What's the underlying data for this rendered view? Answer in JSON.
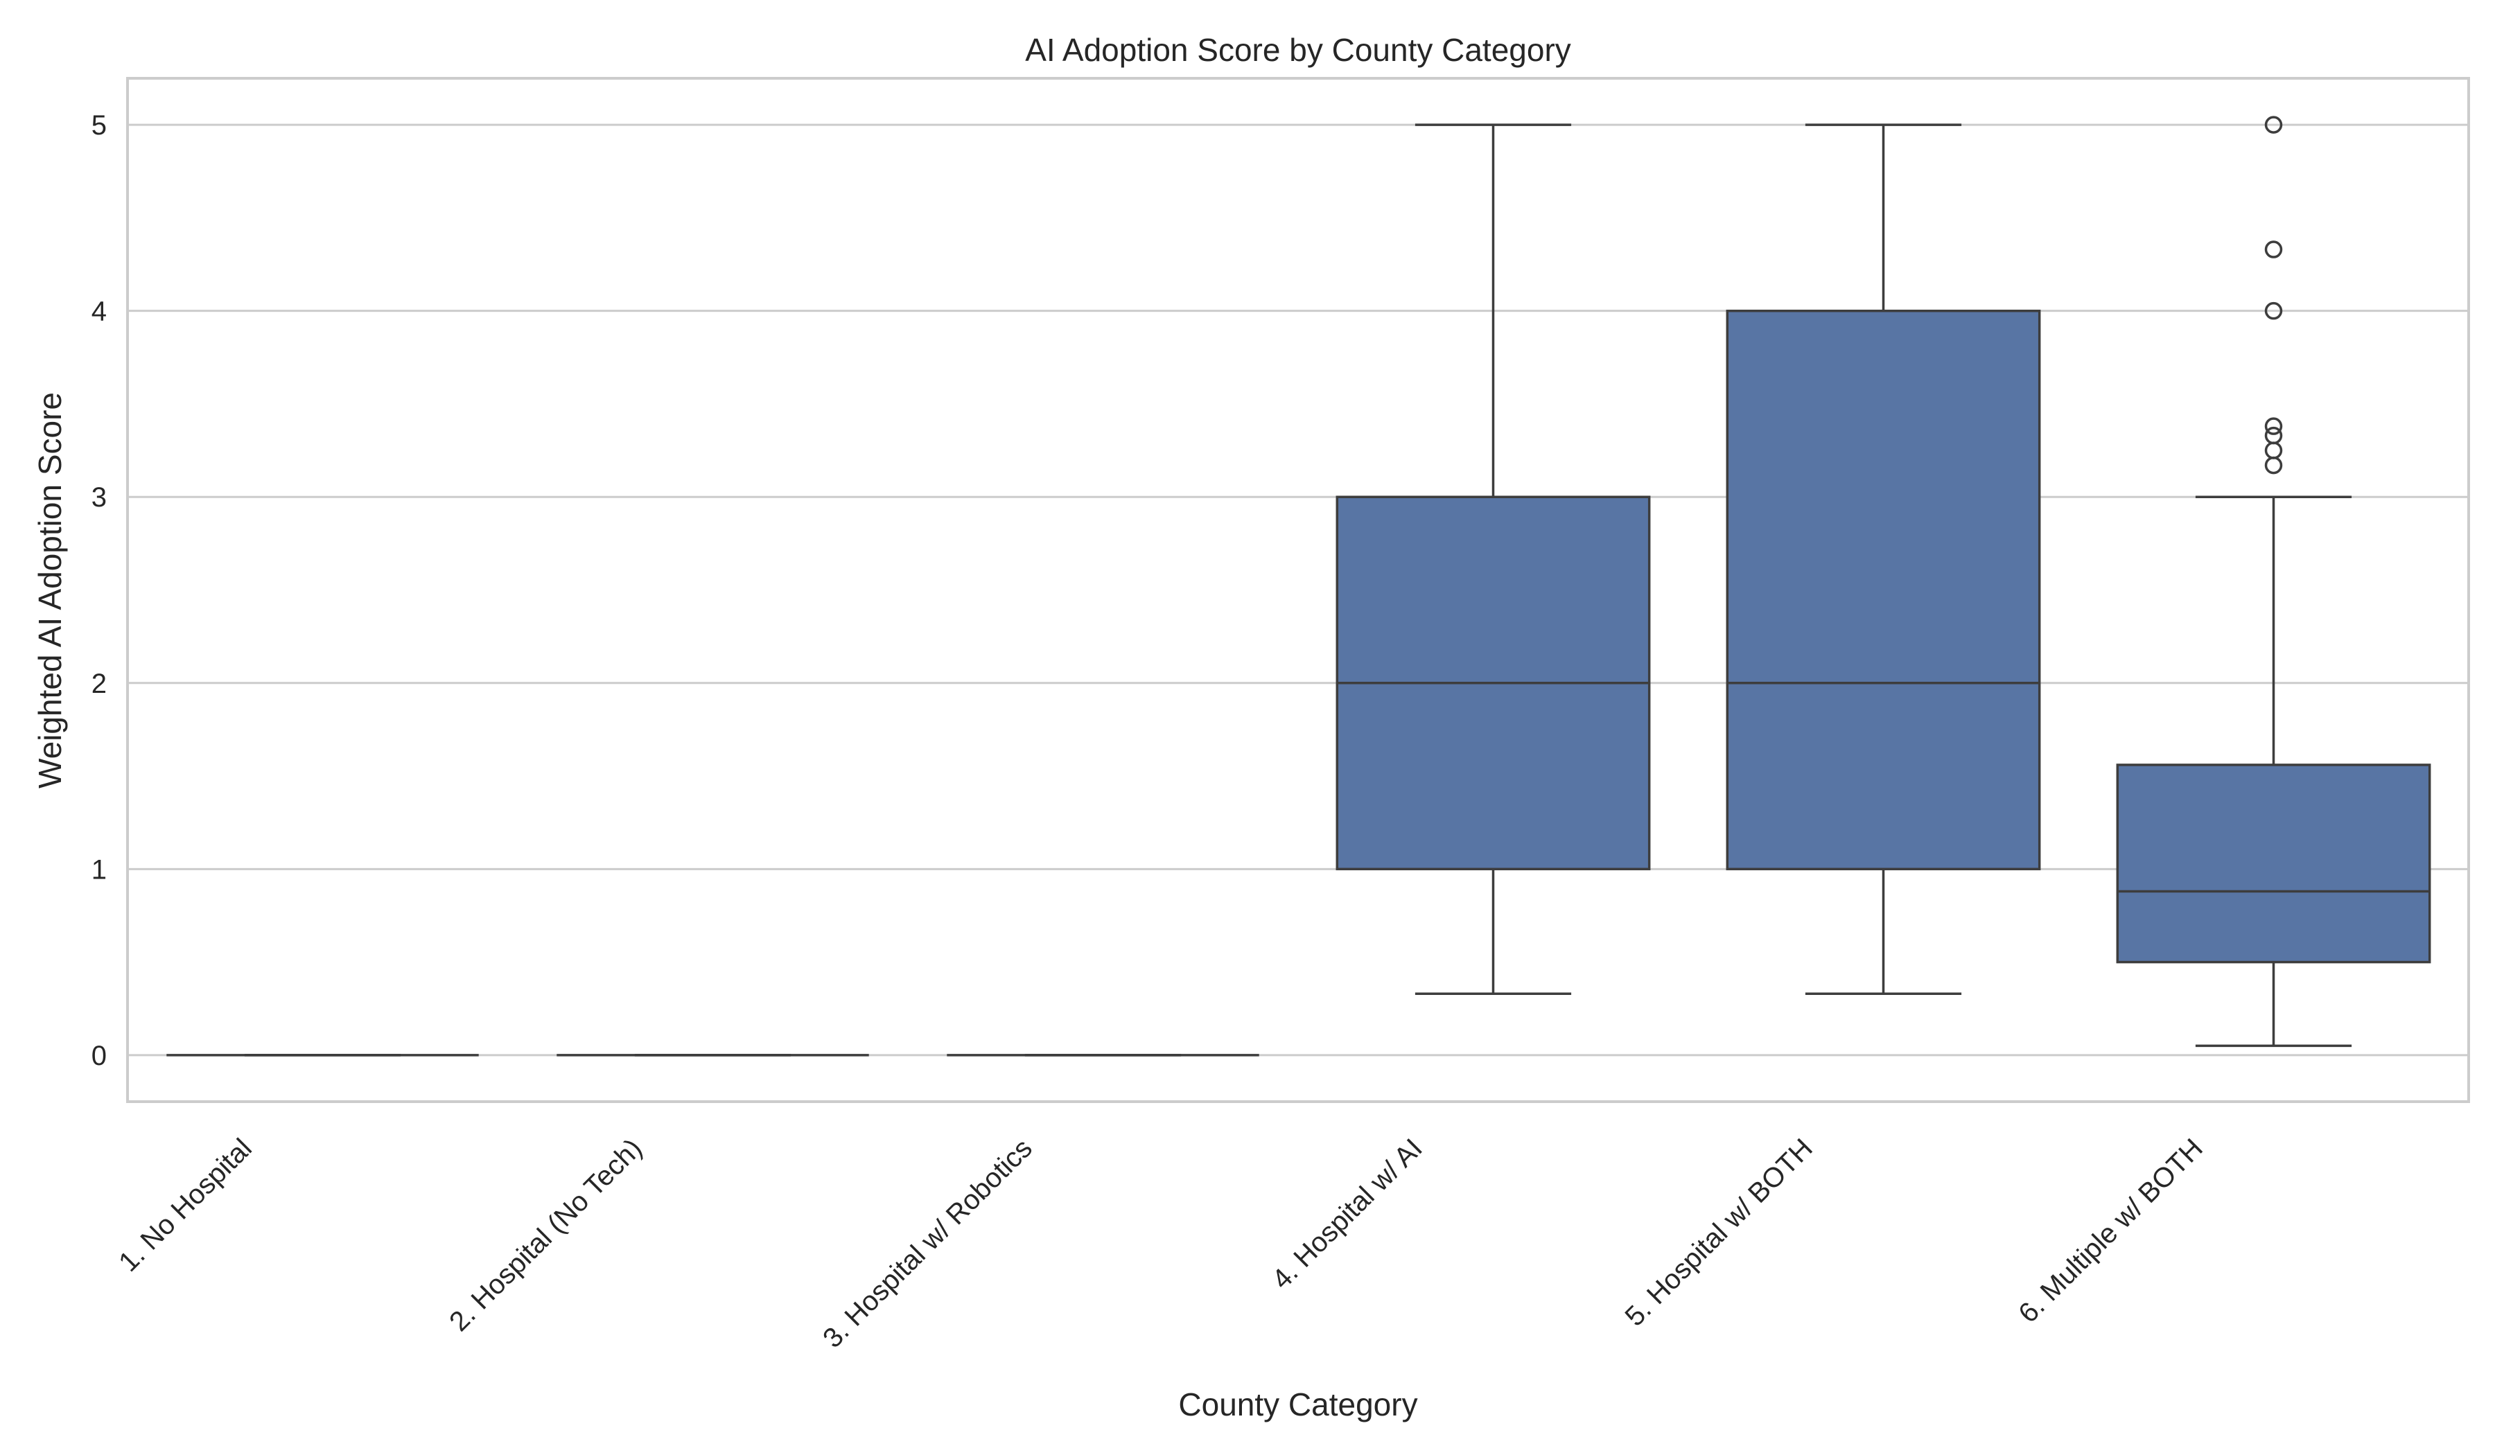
{
  "chart_data": {
    "type": "box",
    "title": "AI Adoption Score by County Category",
    "xlabel": "County Category",
    "ylabel": "Weighted AI Adoption Score",
    "ylim": [
      -0.25,
      5.25
    ],
    "yticks": [
      0,
      1,
      2,
      3,
      4,
      5
    ],
    "grid": true,
    "box_color": "#5875a4",
    "line_color": "#3d3d3d",
    "categories": [
      "1. No Hospital",
      "2. Hospital (No Tech)",
      "3. Hospital w/ Robotics",
      "4. Hospital w/ AI",
      "5. Hospital w/ BOTH",
      "6. Multiple w/ BOTH"
    ],
    "boxes": [
      {
        "min": 0,
        "q1": 0,
        "median": 0,
        "q3": 0,
        "max": 0,
        "outliers": []
      },
      {
        "min": 0,
        "q1": 0,
        "median": 0,
        "q3": 0,
        "max": 0,
        "outliers": []
      },
      {
        "min": 0,
        "q1": 0,
        "median": 0,
        "q3": 0,
        "max": 0,
        "outliers": []
      },
      {
        "min": 0.33,
        "q1": 1,
        "median": 2,
        "q3": 3,
        "max": 5,
        "outliers": []
      },
      {
        "min": 0.33,
        "q1": 1,
        "median": 2,
        "q3": 4,
        "max": 5,
        "outliers": []
      },
      {
        "min": 0.05,
        "q1": 0.5,
        "median": 0.88,
        "q3": 1.56,
        "max": 3,
        "outliers": [
          3.17,
          3.25,
          3.33,
          3.38,
          4,
          4.33,
          5
        ]
      }
    ]
  }
}
